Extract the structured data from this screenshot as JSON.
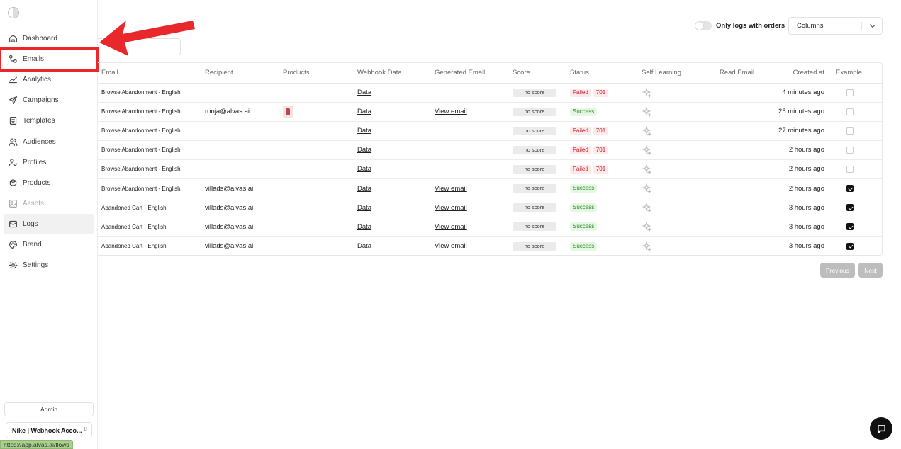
{
  "sidebar": {
    "items": [
      {
        "label": "Dashboard",
        "icon": "home-icon",
        "state": "normal"
      },
      {
        "label": "Emails",
        "icon": "flow-icon",
        "state": "highlight"
      },
      {
        "label": "Analytics",
        "icon": "chart-icon",
        "state": "normal"
      },
      {
        "label": "Campaigns",
        "icon": "send-icon",
        "state": "normal"
      },
      {
        "label": "Templates",
        "icon": "template-icon",
        "state": "normal"
      },
      {
        "label": "Audiences",
        "icon": "users-icon",
        "state": "normal"
      },
      {
        "label": "Profiles",
        "icon": "profile-icon",
        "state": "normal"
      },
      {
        "label": "Products",
        "icon": "products-icon",
        "state": "normal"
      },
      {
        "label": "Assets",
        "icon": "image-icon",
        "state": "disabled"
      },
      {
        "label": "Logs",
        "icon": "logs-icon",
        "state": "active"
      },
      {
        "label": "Brand",
        "icon": "palette-icon",
        "state": "normal"
      },
      {
        "label": "Settings",
        "icon": "gear-icon",
        "state": "normal"
      }
    ],
    "admin_label": "Admin",
    "account_label": "Nike | Webhook Acco...",
    "status_url": "https://app.alvas.ai/flows"
  },
  "toolbar": {
    "toggle_label": "Only logs with orders",
    "columns_label": "Columns"
  },
  "table": {
    "headers": [
      "Email",
      "Recipient",
      "Products",
      "Webhook Data",
      "Generated Email",
      "Score",
      "Status",
      "Self Learning",
      "Read Email",
      "Created at",
      "Example"
    ],
    "rows": [
      {
        "email": "Browse Abandonment - English",
        "recipient": "",
        "product": false,
        "webhook": "Data",
        "generated": "",
        "score": "no score",
        "status": "Failed",
        "code": "701",
        "created": "4 minutes ago",
        "example": false
      },
      {
        "email": "Browse Abandonment - English",
        "recipient": "ronja@alvas.ai",
        "product": true,
        "webhook": "Data",
        "generated": "View email",
        "score": "no score",
        "status": "Success",
        "code": "",
        "created": "25 minutes ago",
        "example": false
      },
      {
        "email": "Browse Abandonment - English",
        "recipient": "",
        "product": false,
        "webhook": "Data",
        "generated": "",
        "score": "no score",
        "status": "Failed",
        "code": "701",
        "created": "27 minutes ago",
        "example": false
      },
      {
        "email": "Browse Abandonment - English",
        "recipient": "",
        "product": false,
        "webhook": "Data",
        "generated": "",
        "score": "no score",
        "status": "Failed",
        "code": "701",
        "created": "2 hours ago",
        "example": false
      },
      {
        "email": "Browse Abandonment - English",
        "recipient": "",
        "product": false,
        "webhook": "Data",
        "generated": "",
        "score": "no score",
        "status": "Failed",
        "code": "701",
        "created": "2 hours ago",
        "example": false
      },
      {
        "email": "Browse Abandonment - English",
        "recipient": "villads@alvas.ai",
        "product": false,
        "webhook": "Data",
        "generated": "View email",
        "score": "no score",
        "status": "Success",
        "code": "",
        "created": "2 hours ago",
        "example": true
      },
      {
        "email": "Abandoned Cart - English",
        "recipient": "villads@alvas.ai",
        "product": false,
        "webhook": "Data",
        "generated": "View email",
        "score": "no score",
        "status": "Success",
        "code": "",
        "created": "3 hours ago",
        "example": true
      },
      {
        "email": "Abandoned Cart - English",
        "recipient": "villads@alvas.ai",
        "product": false,
        "webhook": "Data",
        "generated": "View email",
        "score": "no score",
        "status": "Success",
        "code": "",
        "created": "3 hours ago",
        "example": true
      },
      {
        "email": "Abandoned Cart - English",
        "recipient": "villads@alvas.ai",
        "product": false,
        "webhook": "Data",
        "generated": "View email",
        "score": "no score",
        "status": "Success",
        "code": "",
        "created": "3 hours ago",
        "example": true
      }
    ]
  },
  "pagination": {
    "previous_label": "Previous",
    "next_label": "Next"
  },
  "colors": {
    "annotation_red": "#e8282b",
    "failed": "#c8202f",
    "success": "#2f8d2a"
  }
}
